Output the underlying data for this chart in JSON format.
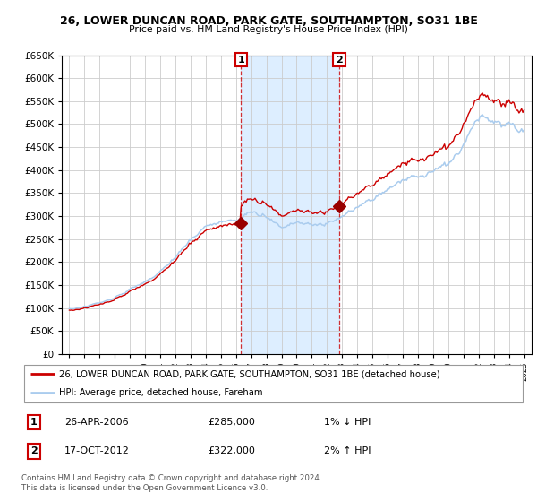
{
  "title": "26, LOWER DUNCAN ROAD, PARK GATE, SOUTHAMPTON, SO31 1BE",
  "subtitle": "Price paid vs. HM Land Registry's House Price Index (HPI)",
  "legend_line1": "26, LOWER DUNCAN ROAD, PARK GATE, SOUTHAMPTON, SO31 1BE (detached house)",
  "legend_line2": "HPI: Average price, detached house, Fareham",
  "annotation1_date": "26-APR-2006",
  "annotation1_price": "£285,000",
  "annotation1_hpi": "1% ↓ HPI",
  "annotation2_date": "17-OCT-2012",
  "annotation2_price": "£322,000",
  "annotation2_hpi": "2% ↑ HPI",
  "footnote1": "Contains HM Land Registry data © Crown copyright and database right 2024.",
  "footnote2": "This data is licensed under the Open Government Licence v3.0.",
  "hpi_color": "#aaccee",
  "price_color": "#cc0000",
  "marker_color": "#990000",
  "annotation_box_color": "#cc0000",
  "grid_color": "#cccccc",
  "shade_color": "#ddeeff",
  "bg_color": "#f5f5f5",
  "ylim_min": 0,
  "ylim_max": 650000,
  "ytick_step": 50000,
  "sale1_year": 2006.32,
  "sale1_price": 285000,
  "sale2_year": 2012.8,
  "sale2_price": 322000,
  "xmin": 1994.5,
  "xmax": 2025.5
}
